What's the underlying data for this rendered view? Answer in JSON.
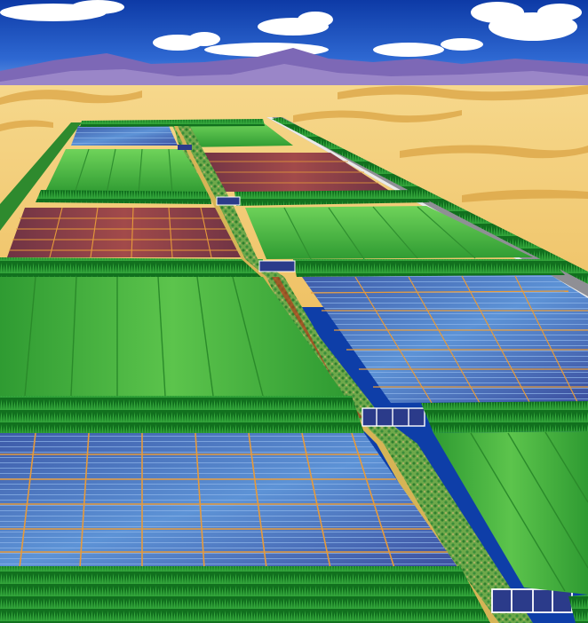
{
  "scene": {
    "kind": "illustration",
    "subject": "desert-farmland-with-solar-panels"
  },
  "palette": {
    "sky_top": "#0d3aa6",
    "sky_bottom": "#4c86e0",
    "cloud": "#ffffff",
    "mountain": "#6b55a8",
    "mountain_far": "#8a78c0",
    "sand_light": "#f3cf7a",
    "sand_dark": "#d9a03c",
    "field_green_light": "#58c24a",
    "field_green_dark": "#1f8a2a",
    "hedge": "#0f6b1c",
    "hedge_tip": "#39b040",
    "solar_blue": "#4f7fc6",
    "solar_dark": "#3a4f9a",
    "grid_orange": "#e69a3a",
    "crop_red": "#8a3a3a",
    "road": "#8f8f95",
    "road_edge": "#e6e6e6",
    "canal_sand": "#d6b456",
    "canal_green": "#3f9a3a",
    "pump": "#2b3b8a"
  },
  "icons": [
    "cloud-icon",
    "solar-panel-icon",
    "pump-station-icon"
  ]
}
